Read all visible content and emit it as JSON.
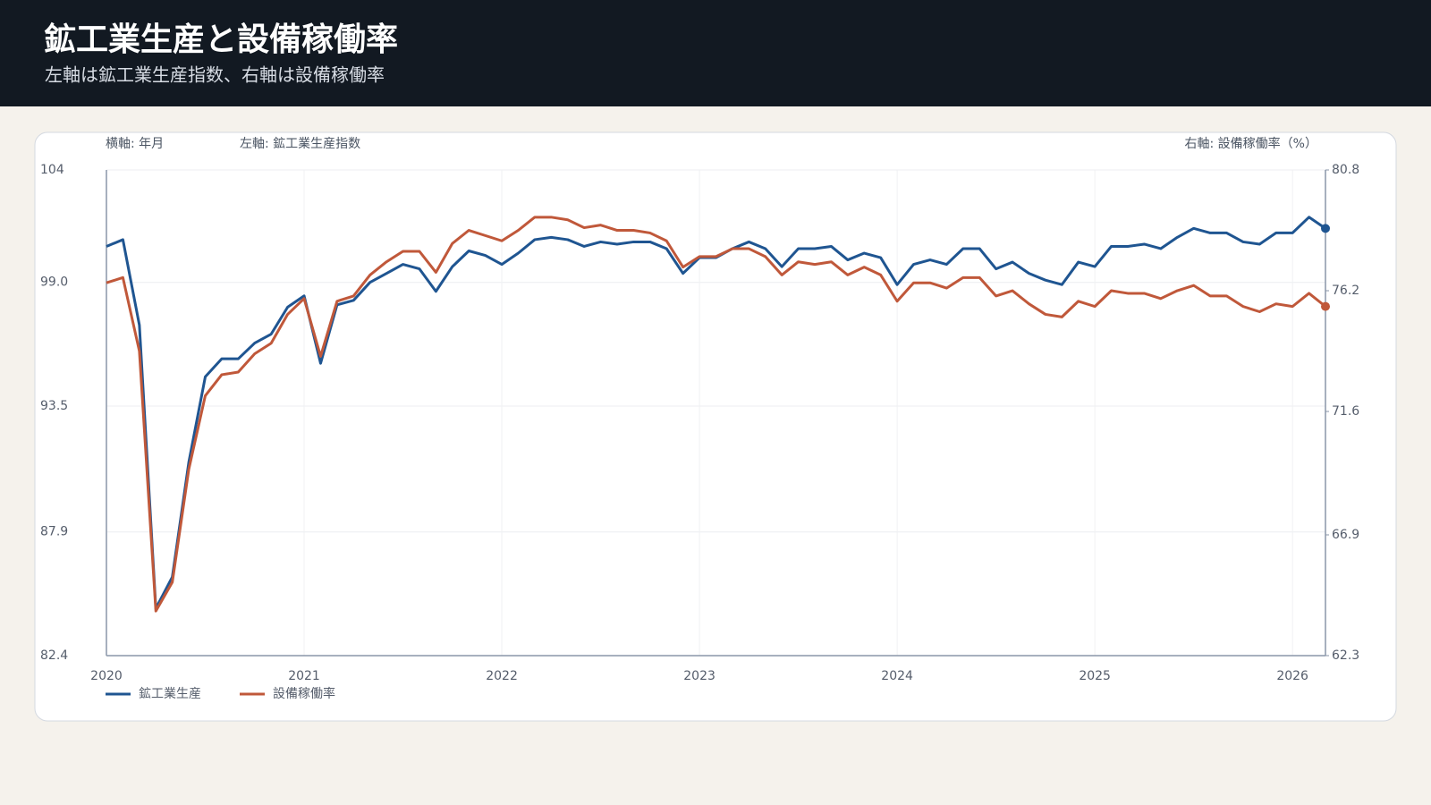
{
  "chart_data": {
    "type": "line",
    "title": "鉱工業生産と設備稼働率",
    "subtitle": "左軸は鉱工業生産指数、右軸は設備稼働率",
    "x_axis_label": "横軸: 年月",
    "y_axis_label": "左軸: 鉱工業生産指数",
    "y2_axis_label": "右軸: 設備稼働率（%）",
    "x": [
      "2020-01",
      "2020-02",
      "2020-03",
      "2020-04",
      "2020-05",
      "2020-06",
      "2020-07",
      "2020-08",
      "2020-09",
      "2020-10",
      "2020-11",
      "2020-12",
      "2021-01",
      "2021-02",
      "2021-03",
      "2021-04",
      "2021-05",
      "2021-06",
      "2021-07",
      "2021-08",
      "2021-09",
      "2021-10",
      "2021-11",
      "2021-12",
      "2022-01",
      "2022-02",
      "2022-03",
      "2022-04",
      "2022-05",
      "2022-06",
      "2022-07",
      "2022-08",
      "2022-09",
      "2022-10",
      "2022-11",
      "2022-12",
      "2023-01",
      "2023-02",
      "2023-03",
      "2023-04",
      "2023-05",
      "2023-06",
      "2023-07",
      "2023-08",
      "2023-09",
      "2023-10",
      "2023-11",
      "2023-12",
      "2024-01",
      "2024-02",
      "2024-03",
      "2024-04",
      "2024-05",
      "2024-06",
      "2024-07",
      "2024-08",
      "2024-09",
      "2024-10",
      "2024-11",
      "2024-12",
      "2025-01",
      "2025-02",
      "2025-03",
      "2025-04",
      "2025-05",
      "2025-06",
      "2025-07",
      "2025-08",
      "2025-09",
      "2025-10",
      "2025-11",
      "2025-12",
      "2026-01",
      "2026-02",
      "2026-03"
    ],
    "xlim": [
      "2020-01",
      "2026-03"
    ],
    "xticks": [
      2020,
      2021,
      2022,
      2023,
      2024,
      2025,
      2026
    ],
    "ylim": [
      82.4,
      104
    ],
    "yticks": [
      82.4,
      87.9,
      93.5,
      {
        "value": 99,
        "label": "99.0"
      },
      104
    ],
    "y2lim": [
      62.3,
      80.8
    ],
    "y2ticks": [
      62.3,
      66.9,
      71.6,
      76.2,
      80.8
    ],
    "grid": true,
    "legend": "bottom-left",
    "series": [
      {
        "name": "鉱工業生産",
        "color": "#1f5591",
        "values": [
          100.6,
          100.9,
          97.1,
          84.5,
          85.9,
          91.0,
          94.8,
          95.6,
          95.6,
          96.3,
          96.7,
          97.9,
          98.4,
          95.4,
          98.0,
          98.2,
          99.0,
          99.4,
          99.8,
          99.6,
          98.6,
          99.7,
          100.4,
          100.2,
          99.8,
          100.3,
          100.9,
          101.0,
          100.9,
          100.6,
          100.8,
          100.7,
          100.8,
          100.8,
          100.5,
          99.4,
          100.1,
          100.1,
          100.5,
          100.8,
          100.5,
          99.7,
          100.5,
          100.5,
          100.6,
          100.0,
          100.3,
          100.1,
          98.9,
          99.8,
          100.0,
          99.8,
          100.5,
          100.5,
          99.6,
          99.9,
          99.4,
          99.1,
          98.9,
          99.9,
          99.7,
          100.6,
          100.6,
          100.7,
          100.5,
          101.0,
          101.4,
          101.2,
          101.2,
          100.8,
          100.7,
          101.2,
          101.2,
          101.9,
          101.4
        ]
      },
      {
        "name": "設備稼働率",
        "color": "#c0583a",
        "axis": "y2",
        "values": [
          76.5,
          76.7,
          73.9,
          64.0,
          65.1,
          69.4,
          72.2,
          73.0,
          73.1,
          73.8,
          74.2,
          75.3,
          75.9,
          73.7,
          75.8,
          76.0,
          76.8,
          77.3,
          77.7,
          77.7,
          76.9,
          78.0,
          78.5,
          78.3,
          78.1,
          78.5,
          79.0,
          79.0,
          78.9,
          78.6,
          78.7,
          78.5,
          78.5,
          78.4,
          78.1,
          77.1,
          77.5,
          77.5,
          77.8,
          77.8,
          77.5,
          76.8,
          77.3,
          77.2,
          77.3,
          76.8,
          77.1,
          76.8,
          75.8,
          76.5,
          76.5,
          76.3,
          76.7,
          76.7,
          76.0,
          76.2,
          75.7,
          75.3,
          75.2,
          75.8,
          75.6,
          76.2,
          76.1,
          76.1,
          75.9,
          76.2,
          76.4,
          76.0,
          76.0,
          75.6,
          75.4,
          75.7,
          75.6,
          76.1,
          75.6
        ]
      }
    ]
  }
}
